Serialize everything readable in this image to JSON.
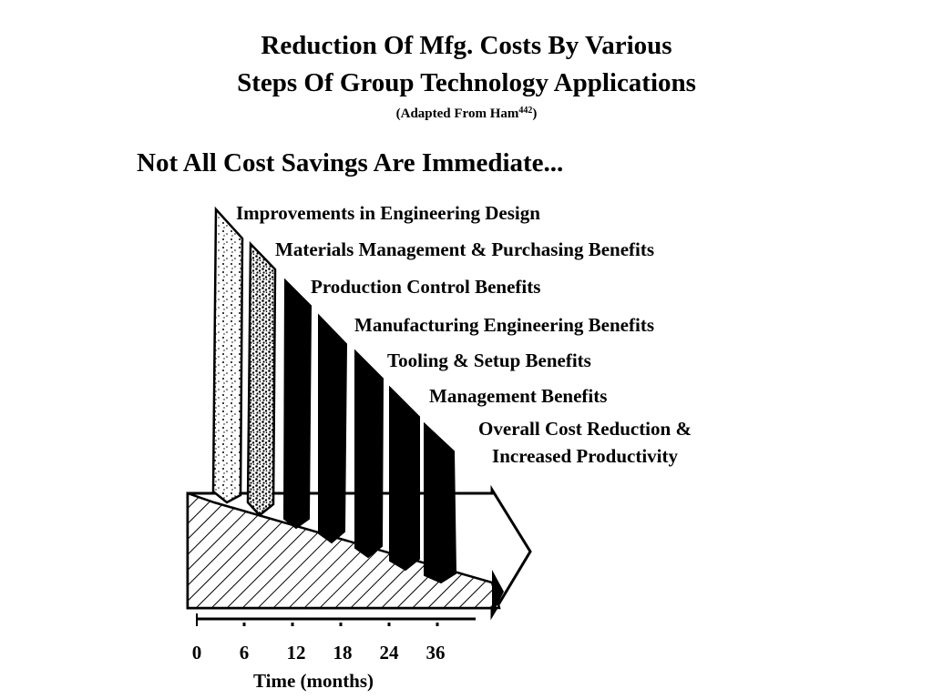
{
  "title": {
    "line1": "Reduction Of Mfg. Costs By Various",
    "line2": "Steps Of Group Technology Applications",
    "source_prefix": "(Adapted From Ham",
    "source_ref": "442",
    "source_suffix": ")"
  },
  "headline": "Not All Cost Savings Are Immediate...",
  "steps": [
    "Improvements in Engineering Design",
    "Materials Management & Purchasing Benefits",
    "Production Control Benefits",
    "Manufacturing Engineering Benefits",
    "Tooling & Setup Benefits",
    "Management Benefits"
  ],
  "overall": {
    "line1": "Overall Cost Reduction &",
    "line2": "Increased Productivity"
  },
  "time_axis": {
    "label": "Time (months)",
    "ticks": [
      "0",
      "6",
      "12",
      "18",
      "24",
      "36"
    ]
  }
}
